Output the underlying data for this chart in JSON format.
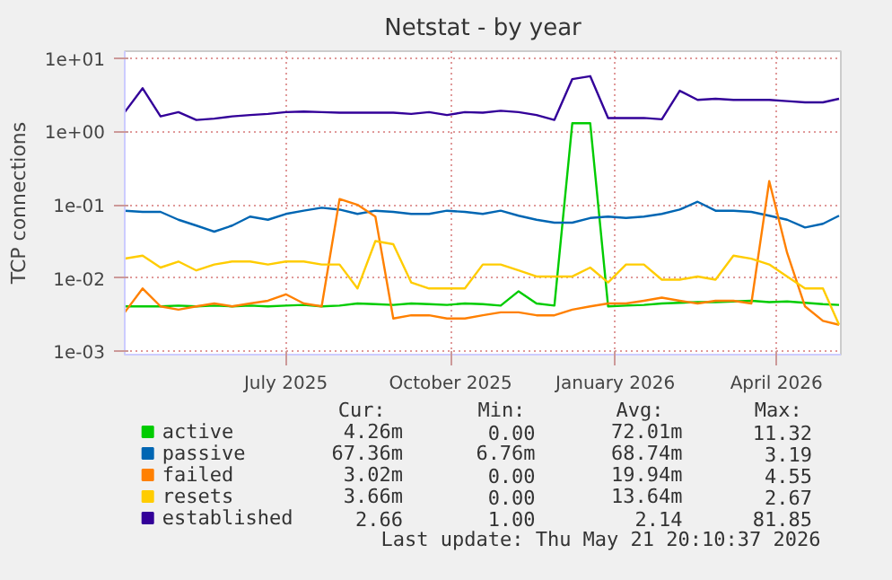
{
  "chart_data": {
    "type": "line",
    "title": "Netstat - by year",
    "ylabel": "TCP connections",
    "log": true,
    "grid": true,
    "legend": "bottom",
    "marker": "none",
    "line_style": "solid",
    "xlim": [
      "2025-04-16",
      "2026-05-21"
    ],
    "xticks": [
      {
        "value": "2025-07-15",
        "label": "July 2025"
      },
      {
        "value": "2025-10-15",
        "label": "October 2025"
      },
      {
        "value": "2026-01-15",
        "label": "January 2026"
      },
      {
        "value": "2026-04-15",
        "label": "April 2026"
      }
    ],
    "ylim": [
      0.0009,
      12.5
    ],
    "yticks": [
      {
        "value": 0.001,
        "label": "1e-03"
      },
      {
        "value": 0.01,
        "label": "1e-02"
      },
      {
        "value": 0.1,
        "label": "1e-01"
      },
      {
        "value": 1,
        "label": "1e+00"
      },
      {
        "value": 10,
        "label": "1e+01"
      }
    ],
    "x": [
      "2025-04-16",
      "2025-04-26",
      "2025-05-06",
      "2025-05-16",
      "2025-05-26",
      "2025-06-05",
      "2025-06-15",
      "2025-06-25",
      "2025-07-05",
      "2025-07-15",
      "2025-07-25",
      "2025-08-04",
      "2025-08-14",
      "2025-08-24",
      "2025-09-03",
      "2025-09-13",
      "2025-09-23",
      "2025-10-03",
      "2025-10-13",
      "2025-10-23",
      "2025-11-02",
      "2025-11-12",
      "2025-11-22",
      "2025-12-02",
      "2025-12-12",
      "2025-12-22",
      "2026-01-01",
      "2026-01-11",
      "2026-01-21",
      "2026-01-31",
      "2026-02-10",
      "2026-02-20",
      "2026-03-02",
      "2026-03-12",
      "2026-03-22",
      "2026-04-01",
      "2026-04-11",
      "2026-04-21",
      "2026-05-01",
      "2026-05-11",
      "2026-05-20"
    ],
    "series": [
      {
        "name": "active",
        "color": "#00cc00",
        "values": [
          0.0041,
          0.0041,
          0.0041,
          0.0042,
          0.0041,
          0.0042,
          0.0041,
          0.0042,
          0.0041,
          0.0042,
          0.0043,
          0.0041,
          0.0042,
          0.0045,
          0.0044,
          0.0043,
          0.0045,
          0.0044,
          0.0043,
          0.0045,
          0.0044,
          0.0042,
          0.0066,
          0.0045,
          0.0042,
          1.3,
          1.3,
          0.0041,
          0.0042,
          0.0043,
          0.0045,
          0.0046,
          0.0047,
          0.0047,
          0.0048,
          0.0049,
          0.0047,
          0.0048,
          0.0046,
          0.0044,
          0.0043
        ]
      },
      {
        "name": "passive",
        "color": "#0066b3",
        "values": [
          0.083,
          0.08,
          0.08,
          0.0625,
          0.052,
          0.043,
          0.052,
          0.069,
          0.0625,
          0.075,
          0.083,
          0.091,
          0.086,
          0.075,
          0.083,
          0.08,
          0.075,
          0.075,
          0.083,
          0.08,
          0.075,
          0.083,
          0.071,
          0.0625,
          0.057,
          0.057,
          0.066,
          0.069,
          0.066,
          0.069,
          0.075,
          0.086,
          0.11,
          0.083,
          0.083,
          0.08,
          0.071,
          0.0625,
          0.049,
          0.055,
          0.071
        ]
      },
      {
        "name": "failed",
        "color": "#ff8000",
        "values": [
          0.0034,
          0.0072,
          0.0041,
          0.0037,
          0.0041,
          0.0045,
          0.0041,
          0.0045,
          0.0049,
          0.006,
          0.0045,
          0.0041,
          0.12,
          0.1,
          0.069,
          0.0028,
          0.0031,
          0.0031,
          0.0028,
          0.0028,
          0.0031,
          0.0034,
          0.0034,
          0.0031,
          0.0031,
          0.0037,
          0.0041,
          0.0045,
          0.0045,
          0.0049,
          0.0054,
          0.0049,
          0.0045,
          0.0049,
          0.0049,
          0.0045,
          0.21,
          0.022,
          0.0041,
          0.0026,
          0.0023
        ]
      },
      {
        "name": "resets",
        "color": "#ffcc00",
        "values": [
          0.0184,
          0.0202,
          0.0139,
          0.0168,
          0.0127,
          0.0153,
          0.0168,
          0.0168,
          0.0153,
          0.0168,
          0.0168,
          0.0153,
          0.0153,
          0.0072,
          0.032,
          0.029,
          0.0087,
          0.0072,
          0.0072,
          0.0072,
          0.0153,
          0.0153,
          0.0127,
          0.0105,
          0.0105,
          0.0105,
          0.0139,
          0.0087,
          0.0153,
          0.0153,
          0.0095,
          0.0095,
          0.0105,
          0.0095,
          0.0202,
          0.0184,
          0.0153,
          0.0105,
          0.0072,
          0.0072,
          0.0023
        ]
      },
      {
        "name": "established",
        "color": "#330099",
        "values": [
          1.84,
          3.9,
          1.61,
          1.84,
          1.44,
          1.5,
          1.61,
          1.68,
          1.74,
          1.84,
          1.87,
          1.84,
          1.81,
          1.81,
          1.81,
          1.81,
          1.74,
          1.84,
          1.68,
          1.84,
          1.81,
          1.92,
          1.84,
          1.68,
          1.44,
          5.2,
          5.7,
          1.53,
          1.53,
          1.53,
          1.47,
          3.6,
          2.7,
          2.8,
          2.7,
          2.7,
          2.7,
          2.6,
          2.5,
          2.5,
          2.8
        ]
      }
    ],
    "annotations": [
      "Cur:",
      "Min:",
      "Avg:",
      "Max:",
      "4.26m",
      "0.00",
      "72.01m",
      "11.32",
      "67.36m",
      "6.76m",
      "68.74m",
      "3.19",
      "3.02m",
      "0.00",
      "19.94m",
      "4.55",
      "3.66m",
      "0.00",
      "13.64m",
      "2.67",
      "2.66",
      "1.00",
      "2.14",
      "81.85",
      "Last update: Thu May 21 20:10:37 2026"
    ]
  }
}
